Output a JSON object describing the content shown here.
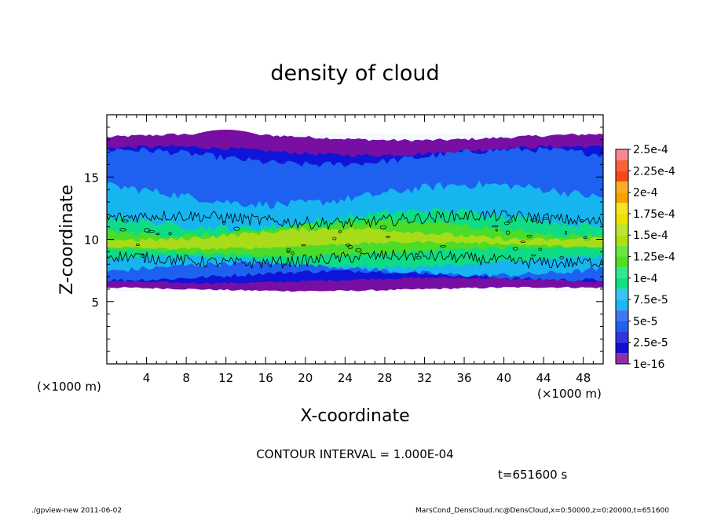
{
  "chart_data": {
    "type": "heatmap",
    "title": "density of cloud",
    "xlabel": "X-coordinate",
    "ylabel": "Z-coordinate",
    "x_unit": "(×1000 m)",
    "y_unit": "(×1000 m)",
    "xlim": [
      0,
      50
    ],
    "ylim": [
      0,
      20
    ],
    "x_ticks": [
      4,
      8,
      12,
      16,
      20,
      24,
      28,
      32,
      36,
      40,
      44,
      48
    ],
    "y_ticks": [
      5,
      10,
      15
    ],
    "colorbar": {
      "labels": [
        "1e-16",
        "2.5e-5",
        "5e-5",
        "7.5e-5",
        "1e-4",
        "1.25e-4",
        "1.5e-4",
        "1.75e-4",
        "2e-4",
        "2.25e-4",
        "2.5e-4"
      ],
      "colors": [
        "#7d0aa0",
        "#1010d8",
        "#2060f0",
        "#18b8f0",
        "#10e080",
        "#50e020",
        "#b0e010",
        "#f0e000",
        "#f8a000",
        "#f84818",
        "#f88890"
      ]
    },
    "contour_interval_text": "CONTOUR INTERVAL = 1.000E-04",
    "time_text": "t=651600 s",
    "cloud_layer": {
      "bottom_km": 6.0,
      "top_km": 18.2,
      "core_center_km": 10.0,
      "peak_density": 0.00016
    }
  },
  "footer": {
    "left": "./gpview-new  2011-06-02",
    "right": "MarsCond_DensCloud.nc@DensCloud,x=0:50000,z=0:20000,t=651600"
  }
}
